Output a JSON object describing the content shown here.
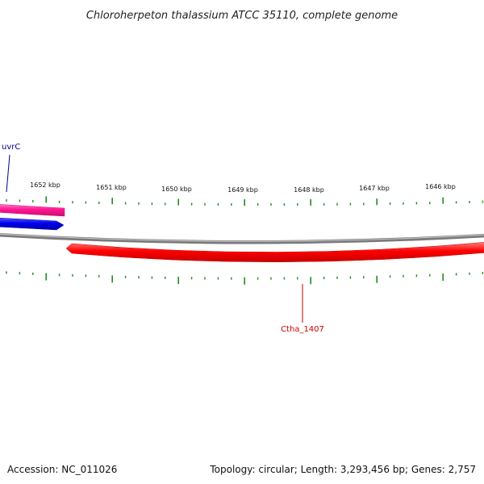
{
  "title": "Chloroherpeton thalassium ATCC 35110, complete genome",
  "footer": {
    "accession": "Accession: NC_011026",
    "summary": "Topology: circular; Length: 3,293,456 bp; Genes: 2,757"
  },
  "ruler": {
    "labels": [
      "1652 kbp",
      "1651 kbp",
      "1650 kbp",
      "1649 kbp",
      "1648 kbp",
      "1647 kbp",
      "1646 kbp"
    ],
    "tick_color": "#228b22"
  },
  "genes": {
    "uvrC": {
      "name": "uvrC",
      "label_color": "#00008b",
      "color": "#ff1493"
    },
    "blue_feature": {
      "color": "#0000ee"
    },
    "ctha_1407": {
      "name": "Ctha_1407",
      "label_color": "#cc0000",
      "color": "#ff0000"
    }
  },
  "backbone": {
    "color": "#808080"
  },
  "colors": {
    "pink_gene": "#ff1493",
    "blue_gene": "#0000ee",
    "red_gene": "#ff0000",
    "ticks": "#228b22",
    "backbone": "#808080"
  }
}
